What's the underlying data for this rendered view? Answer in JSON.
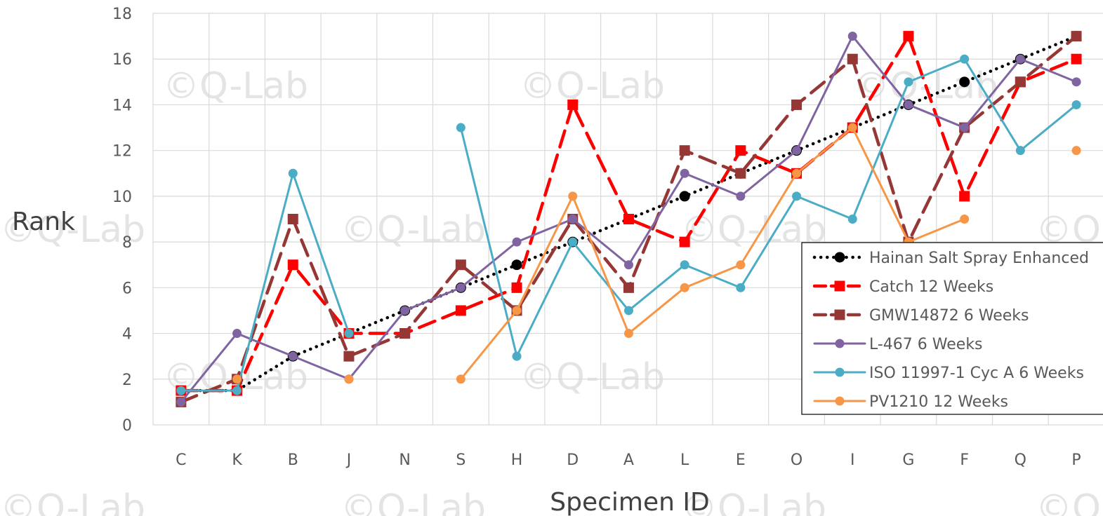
{
  "watermark": "©Q-Lab",
  "chart_data": {
    "type": "line",
    "title": "",
    "xlabel": "Specimen ID",
    "ylabel": "Rank",
    "ylim": [
      0,
      18
    ],
    "yticks": [
      0,
      2,
      4,
      6,
      8,
      10,
      12,
      14,
      16,
      18
    ],
    "grid": true,
    "legend_position": "bottom-right",
    "categories": [
      "C",
      "K",
      "B",
      "J",
      "N",
      "S",
      "H",
      "D",
      "A",
      "L",
      "E",
      "O",
      "I",
      "G",
      "F",
      "Q",
      "P"
    ],
    "series": [
      {
        "name": "Hainan Salt Spray Enhanced",
        "color": "#000000",
        "dash": "dotted",
        "marker": "circle",
        "values": [
          1.5,
          1.5,
          3,
          4,
          5,
          6,
          7,
          8,
          9,
          10,
          11,
          12,
          13,
          14,
          15,
          16,
          17
        ]
      },
      {
        "name": "Catch 12 Weeks",
        "color": "#ff0000",
        "dash": "dashed",
        "marker": "square",
        "values": [
          1.5,
          1.5,
          7,
          4,
          4,
          5,
          6,
          14,
          9,
          8,
          12,
          11,
          13,
          17,
          10,
          15,
          16
        ]
      },
      {
        "name": "GMW14872 6 Weeks",
        "color": "#953735",
        "dash": "dashed",
        "marker": "square",
        "values": [
          1,
          2,
          9,
          3,
          4,
          7,
          5,
          9,
          6,
          12,
          11,
          14,
          16,
          8,
          13,
          15,
          17
        ]
      },
      {
        "name": "L-467 6 Weeks",
        "color": "#8064a2",
        "dash": "solid",
        "marker": "circle",
        "values": [
          1,
          4,
          3,
          2,
          5,
          6,
          8,
          9,
          7,
          11,
          10,
          12,
          17,
          14,
          13,
          16,
          15
        ]
      },
      {
        "name": "ISO 11997-1 Cyc A 6 Weeks",
        "color": "#4bacc6",
        "dash": "solid",
        "marker": "circle",
        "values": [
          1.5,
          1.5,
          11,
          4,
          null,
          13,
          3,
          8,
          5,
          7,
          6,
          10,
          9,
          15,
          16,
          12,
          14
        ]
      },
      {
        "name": "PV1210 12 Weeks",
        "color": "#f79646",
        "dash": "solid",
        "marker": "circle",
        "values": [
          null,
          2,
          null,
          2,
          null,
          2,
          5,
          10,
          4,
          6,
          7,
          11,
          13,
          8,
          9,
          null,
          12
        ]
      }
    ]
  }
}
